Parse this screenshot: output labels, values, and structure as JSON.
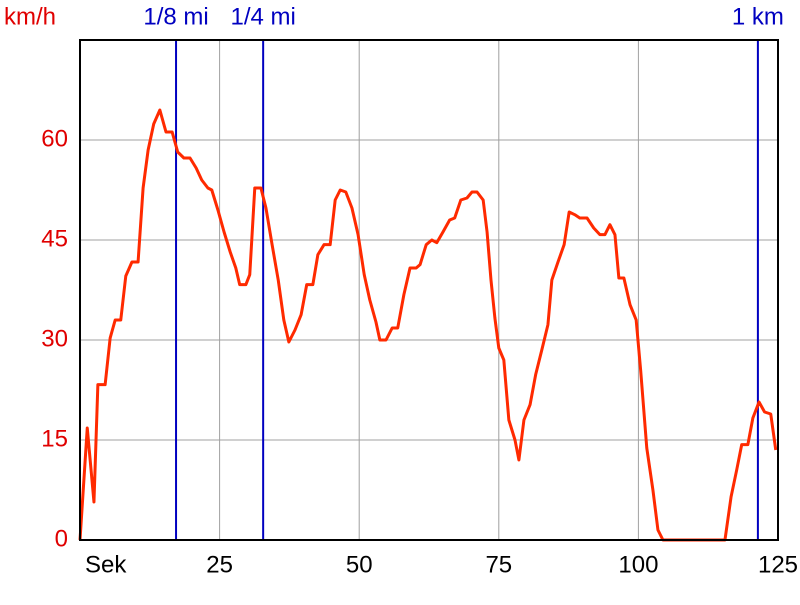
{
  "chart_data": {
    "type": "line",
    "y_label": "km/h",
    "x": [
      0,
      1.3,
      2.5,
      3.2,
      4.5,
      5.4,
      6.3,
      7.3,
      8.2,
      9.3,
      10.4,
      11.3,
      12.2,
      13.2,
      14.3,
      15.4,
      16.5,
      17.5,
      18.6,
      19.7,
      20.8,
      21.8,
      22.9,
      23.6,
      24.7,
      25.8,
      26.9,
      27.9,
      28.6,
      29.7,
      30.4,
      31.3,
      32.4,
      33.3,
      34.4,
      35.5,
      36.5,
      37.4,
      38.5,
      39.6,
      40.6,
      41.7,
      42.6,
      43.7,
      44.8,
      45.7,
      46.6,
      47.6,
      48.7,
      49.8,
      50.9,
      51.9,
      53.0,
      53.7,
      54.8,
      55.9,
      56.9,
      58.0,
      59.1,
      60.2,
      60.9,
      62.0,
      63.0,
      63.9,
      65.0,
      66.2,
      67.1,
      68.2,
      69.3,
      70.2,
      71.1,
      72.2,
      72.9,
      73.6,
      74.3,
      75.0,
      75.9,
      76.8,
      77.9,
      78.6,
      79.5,
      80.6,
      81.6,
      82.7,
      83.8,
      84.5,
      85.6,
      86.7,
      87.6,
      88.6,
      89.5,
      90.8,
      92.0,
      93.1,
      94.0,
      94.9,
      95.8,
      96.5,
      97.4,
      98.5,
      99.6,
      100.4,
      101.5,
      102.6,
      103.5,
      104.4,
      115.5,
      116.6,
      117.6,
      118.5,
      119.6,
      120.5,
      121.6,
      122.6,
      123.7,
      124.6
    ],
    "series": [
      {
        "color": "#ff2a00",
        "values": [
          0,
          16.8,
          5.7,
          23.3,
          23.3,
          30.3,
          33.0,
          33.0,
          39.6,
          41.7,
          41.7,
          52.8,
          58.5,
          62.4,
          64.5,
          61.2,
          61.2,
          58.2,
          57.3,
          57.3,
          55.8,
          54.0,
          52.8,
          52.5,
          49.5,
          46.2,
          43.2,
          40.8,
          38.3,
          38.3,
          39.8,
          52.8,
          52.8,
          49.8,
          44.3,
          39.0,
          33.0,
          29.7,
          31.5,
          33.8,
          38.3,
          38.3,
          42.8,
          44.3,
          44.3,
          51.0,
          52.5,
          52.2,
          49.8,
          45.8,
          39.8,
          36.0,
          32.7,
          30.0,
          30.0,
          31.8,
          31.8,
          36.8,
          40.8,
          40.8,
          41.3,
          44.3,
          45.0,
          44.6,
          46.2,
          48.0,
          48.3,
          51.0,
          51.3,
          52.2,
          52.2,
          51.0,
          46.2,
          39.0,
          33.3,
          28.8,
          27.0,
          18.0,
          15.0,
          12.0,
          18.0,
          20.3,
          24.8,
          28.5,
          32.3,
          39.0,
          41.7,
          44.3,
          49.2,
          48.8,
          48.3,
          48.3,
          46.8,
          45.8,
          45.8,
          47.3,
          45.8,
          39.3,
          39.3,
          35.3,
          33.0,
          25.5,
          13.8,
          7.5,
          1.5,
          0,
          0,
          6.5,
          10.5,
          14.3,
          14.3,
          18.3,
          20.7,
          19.2,
          18.9,
          13.5
        ]
      }
    ],
    "xlim": [
      0,
      125
    ],
    "ylim": [
      0,
      75
    ],
    "xticks": [
      {
        "value": 0,
        "label": "Sek"
      },
      25,
      50,
      75,
      100,
      125
    ],
    "yticks": [
      0,
      15,
      30,
      45,
      60
    ],
    "grid": true,
    "markers": [
      {
        "label": "1/8 mi",
        "x": 17.2
      },
      {
        "label": "1/4 mi",
        "x": 32.8
      },
      {
        "label": "1 km",
        "x": 121.4
      }
    ],
    "marker_color": "#0000c0",
    "tick_color": "#e00000"
  }
}
